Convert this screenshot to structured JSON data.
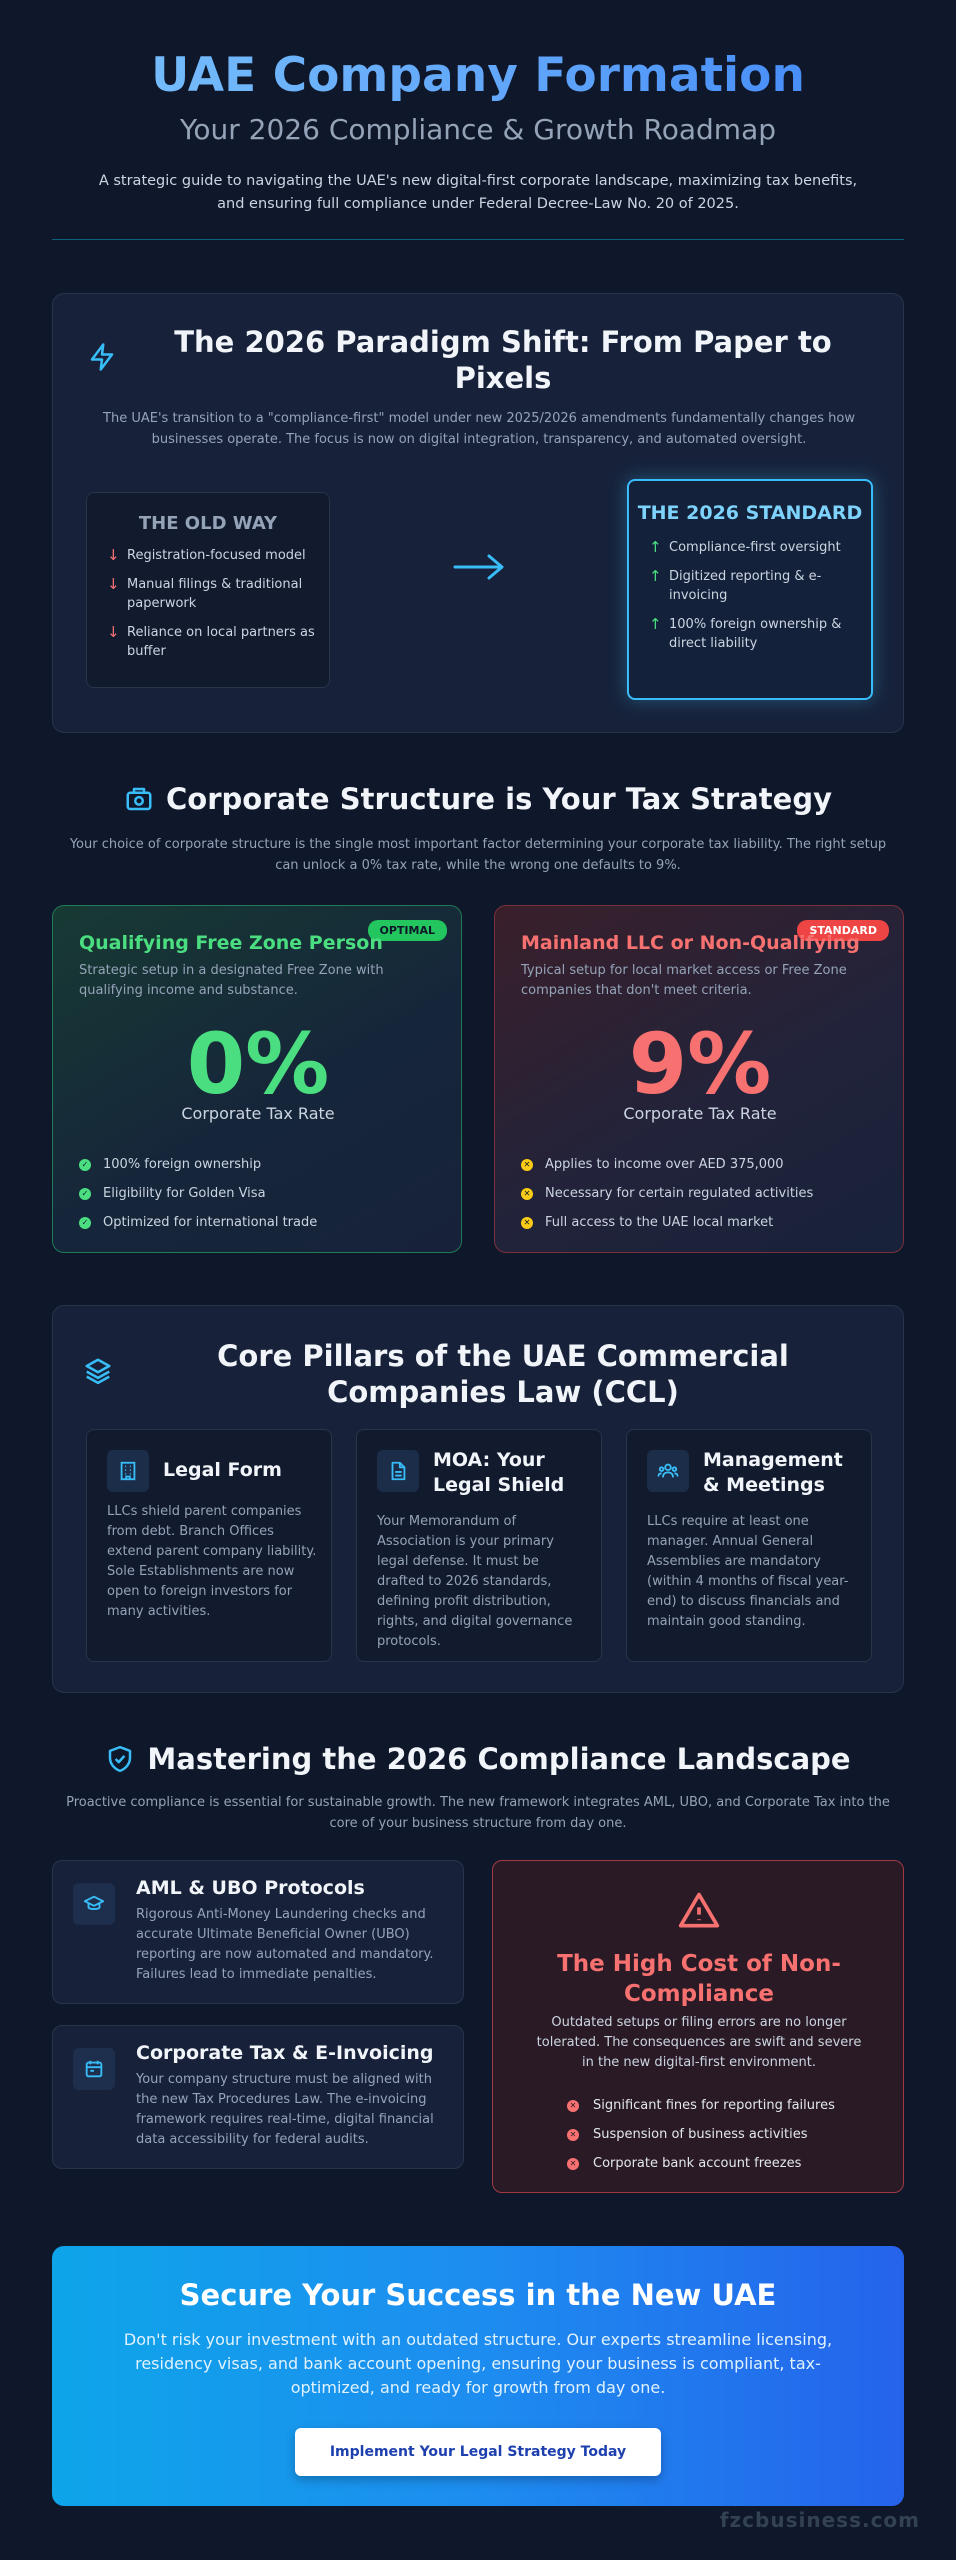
{
  "header": {
    "title": "UAE Company Formation",
    "subtitle": "Your 2026 Compliance & Growth Roadmap",
    "description": "A strategic guide to navigating the UAE's new digital-first corporate landscape, maximizing tax benefits, and ensuring full compliance under Federal Decree-Law No. 20 of 2025."
  },
  "paradigm": {
    "icon": "lightning-icon",
    "title": "The 2026 Paradigm Shift: From Paper to Pixels",
    "description": "The UAE's transition to a \"compliance-first\" model under new 2025/2026 amendments fundamentally changes how businesses operate. The focus is now on digital integration, transparency, and automated oversight.",
    "old_way": {
      "title": "THE OLD WAY",
      "items": [
        "Registration-focused model",
        "Manual filings & traditional paperwork",
        "Reliance on local partners as buffer"
      ]
    },
    "new_standard": {
      "title": "THE 2026 STANDARD",
      "items": [
        "Compliance-first oversight",
        "Digitized reporting & e-invoicing",
        "100% foreign ownership & direct liability"
      ]
    }
  },
  "structure": {
    "icon": "building-icon",
    "title": "Corporate Structure is Your Tax Strategy",
    "description": "Your choice of corporate structure is the single most important factor determining your corporate tax liability. The right setup can unlock a 0% tax rate, while the wrong one defaults to 9%.",
    "free_zone": {
      "badge": "OPTIMAL",
      "title": "Qualifying Free Zone Person",
      "description": "Strategic setup in a designated Free Zone with qualifying income and substance.",
      "rate": "0%",
      "rate_label": "Corporate Tax Rate",
      "items": [
        "100% foreign ownership",
        "Eligibility for Golden Visa",
        "Optimized for international trade"
      ]
    },
    "mainland": {
      "badge": "STANDARD",
      "title": "Mainland LLC or Non-Qualifying",
      "description": "Typical setup for local market access or Free Zone companies that don't meet criteria.",
      "rate": "9%",
      "rate_label": "Corporate Tax Rate",
      "items": [
        "Applies to income over AED 375,000",
        "Necessary for certain regulated activities",
        "Full access to the UAE local market"
      ]
    }
  },
  "pillars": {
    "icon": "layers-icon",
    "title": "Core Pillars of the UAE Commercial Companies Law (CCL)",
    "items": [
      {
        "icon": "office-building-icon",
        "title": "Legal Form",
        "description": "LLCs shield parent companies from debt. Branch Offices extend parent company liability. Sole Establishments are now open to foreign investors for many activities."
      },
      {
        "icon": "document-icon",
        "title": "MOA: Your Legal Shield",
        "description": "Your Memorandum of Association is your primary legal defense. It must be drafted to 2026 standards, defining profit distribution, rights, and digital governance protocols."
      },
      {
        "icon": "users-icon",
        "title": "Management & Meetings",
        "description": "LLCs require at least one manager. Annual General Assemblies are mandatory (within 4 months of fiscal year-end) to discuss financials and maintain good standing."
      }
    ]
  },
  "compliance": {
    "icon": "shield-check-icon",
    "title": "Mastering the 2026 Compliance Landscape",
    "description": "Proactive compliance is essential for sustainable growth. The new framework integrates AML, UBO, and Corporate Tax into the core of your business structure from day one.",
    "aml": {
      "icon": "graduation-cap-icon",
      "title": "AML & UBO Protocols",
      "description": "Rigorous Anti-Money Laundering checks and accurate Ultimate Beneficial Owner (UBO) reporting are now automated and mandatory. Failures lead to immediate penalties."
    },
    "tax": {
      "icon": "calendar-icon",
      "title": "Corporate Tax & E-Invoicing",
      "description": "Your company structure must be aligned with the new Tax Procedures Law. The e-invoicing framework requires real-time, digital financial data accessibility for federal audits."
    },
    "cost": {
      "icon": "warning-triangle-icon",
      "title": "The High Cost of Non-Compliance",
      "description": "Outdated setups or filing errors are no longer tolerated. The consequences are swift and severe in the new digital-first environment.",
      "items": [
        "Significant fines for reporting failures",
        "Suspension of business activities",
        "Corporate bank account freezes"
      ]
    }
  },
  "cta": {
    "title": "Secure Your Success in the New UAE",
    "description": "Don't risk your investment with an outdated structure. Our experts streamline licensing, residency visas, and bank account opening, ensuring your business is compliant, tax-optimized, and ready for growth from day one.",
    "button": "Implement Your Legal Strategy Today"
  },
  "watermark": "fzcbusiness.com"
}
